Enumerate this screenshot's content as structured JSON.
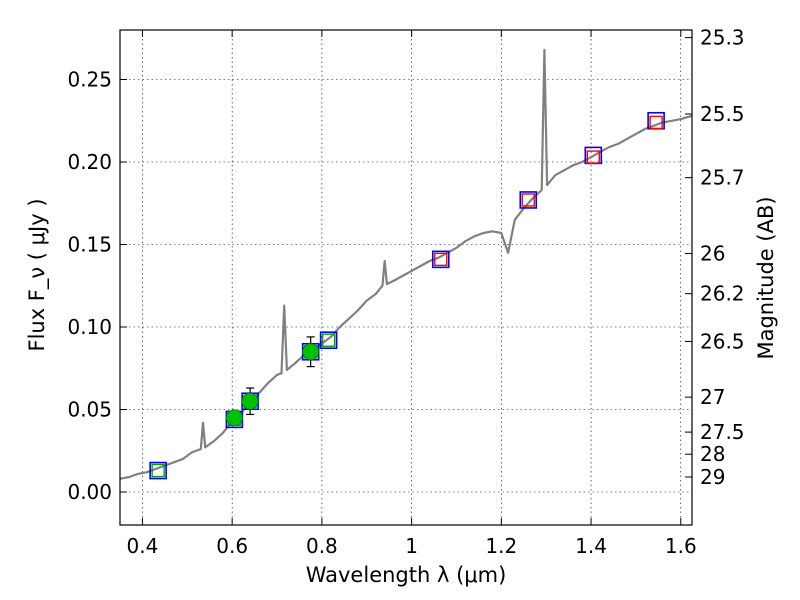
{
  "chart_data": {
    "type": "line",
    "xlabel": "Wavelength  λ (μm)",
    "ylabel_left": "Flux  F_ν  ( μJy )",
    "ylabel_right": "Magnitude (AB)",
    "xlim": [
      0.35,
      1.625
    ],
    "ylim": [
      -0.02,
      0.28
    ],
    "grid": true,
    "x_ticks": [
      0.4,
      0.6,
      0.8,
      1.0,
      1.2,
      1.4,
      1.6
    ],
    "x_tick_labels": [
      "0.4",
      "0.6",
      "0.8",
      "1",
      "1.2",
      "1.4",
      "1.6"
    ],
    "y_ticks": [
      0.0,
      0.05,
      0.1,
      0.15,
      0.2,
      0.25
    ],
    "y_tick_labels": [
      "0.00",
      "0.05",
      "0.10",
      "0.15",
      "0.20",
      "0.25"
    ],
    "mag_ticks": [
      {
        "label": "25.3",
        "flux": 0.2754
      },
      {
        "label": "25.5",
        "flux": 0.2291
      },
      {
        "label": "25.7",
        "flux": 0.1905
      },
      {
        "label": "26",
        "flux": 0.1445
      },
      {
        "label": "26.2",
        "flux": 0.1202
      },
      {
        "label": "26.5",
        "flux": 0.0912
      },
      {
        "label": "27",
        "flux": 0.0575
      },
      {
        "label": "27.5",
        "flux": 0.0363
      },
      {
        "label": "28",
        "flux": 0.0229
      },
      {
        "label": "29",
        "flux": 0.0091
      }
    ],
    "series": [
      {
        "kind": "spectrum",
        "color": "#808080",
        "points": [
          [
            0.35,
            0.008
          ],
          [
            0.37,
            0.009
          ],
          [
            0.39,
            0.011
          ],
          [
            0.41,
            0.012
          ],
          [
            0.43,
            0.014
          ],
          [
            0.45,
            0.016
          ],
          [
            0.47,
            0.018
          ],
          [
            0.49,
            0.02
          ],
          [
            0.51,
            0.024
          ],
          [
            0.53,
            0.026
          ],
          [
            0.535,
            0.042
          ],
          [
            0.54,
            0.027
          ],
          [
            0.56,
            0.031
          ],
          [
            0.58,
            0.036
          ],
          [
            0.6,
            0.043
          ],
          [
            0.62,
            0.048
          ],
          [
            0.64,
            0.054
          ],
          [
            0.66,
            0.06
          ],
          [
            0.68,
            0.066
          ],
          [
            0.7,
            0.071
          ],
          [
            0.71,
            0.072
          ],
          [
            0.716,
            0.113
          ],
          [
            0.722,
            0.074
          ],
          [
            0.74,
            0.078
          ],
          [
            0.76,
            0.083
          ],
          [
            0.78,
            0.086
          ],
          [
            0.8,
            0.09
          ],
          [
            0.82,
            0.094
          ],
          [
            0.84,
            0.1
          ],
          [
            0.86,
            0.105
          ],
          [
            0.88,
            0.11
          ],
          [
            0.9,
            0.116
          ],
          [
            0.92,
            0.12
          ],
          [
            0.935,
            0.125
          ],
          [
            0.94,
            0.14
          ],
          [
            0.945,
            0.126
          ],
          [
            0.96,
            0.128
          ],
          [
            0.98,
            0.131
          ],
          [
            1.0,
            0.134
          ],
          [
            1.02,
            0.137
          ],
          [
            1.04,
            0.14
          ],
          [
            1.06,
            0.142
          ],
          [
            1.08,
            0.145
          ],
          [
            1.1,
            0.148
          ],
          [
            1.12,
            0.152
          ],
          [
            1.14,
            0.155
          ],
          [
            1.16,
            0.157
          ],
          [
            1.18,
            0.158
          ],
          [
            1.2,
            0.157
          ],
          [
            1.215,
            0.145
          ],
          [
            1.23,
            0.165
          ],
          [
            1.25,
            0.172
          ],
          [
            1.27,
            0.178
          ],
          [
            1.29,
            0.183
          ],
          [
            1.296,
            0.268
          ],
          [
            1.302,
            0.186
          ],
          [
            1.32,
            0.192
          ],
          [
            1.34,
            0.195
          ],
          [
            1.36,
            0.198
          ],
          [
            1.38,
            0.2
          ],
          [
            1.4,
            0.203
          ],
          [
            1.42,
            0.206
          ],
          [
            1.44,
            0.209
          ],
          [
            1.46,
            0.211
          ],
          [
            1.48,
            0.214
          ],
          [
            1.5,
            0.217
          ],
          [
            1.52,
            0.22
          ],
          [
            1.54,
            0.222
          ],
          [
            1.56,
            0.224
          ],
          [
            1.58,
            0.225
          ],
          [
            1.6,
            0.226
          ],
          [
            1.625,
            0.228
          ]
        ]
      },
      {
        "kind": "squares",
        "color": "#0000ff",
        "points": [
          [
            0.435,
            0.013
          ],
          [
            0.605,
            0.044
          ],
          [
            0.64,
            0.055
          ],
          [
            0.775,
            0.085
          ],
          [
            0.815,
            0.092
          ],
          [
            1.065,
            0.141
          ],
          [
            1.26,
            0.177
          ],
          [
            1.405,
            0.204
          ],
          [
            1.545,
            0.225
          ]
        ]
      },
      {
        "kind": "squares_inner_green",
        "color": "#00a000",
        "points": [
          [
            0.435,
            0.013
          ],
          [
            0.605,
            0.044
          ],
          [
            0.64,
            0.055
          ],
          [
            0.775,
            0.085
          ],
          [
            0.815,
            0.092
          ]
        ]
      },
      {
        "kind": "squares_inner_red",
        "color": "#ff0000",
        "points": [
          [
            1.065,
            0.141
          ],
          [
            1.26,
            0.177
          ],
          [
            1.405,
            0.203
          ],
          [
            1.545,
            0.224
          ]
        ]
      },
      {
        "kind": "circles_errorbars",
        "color": "#00c000",
        "points": [
          {
            "x": 0.605,
            "y": 0.045,
            "err": 0.004
          },
          {
            "x": 0.64,
            "y": 0.055,
            "err": 0.008
          },
          {
            "x": 0.775,
            "y": 0.085,
            "err": 0.009
          }
        ]
      }
    ]
  }
}
